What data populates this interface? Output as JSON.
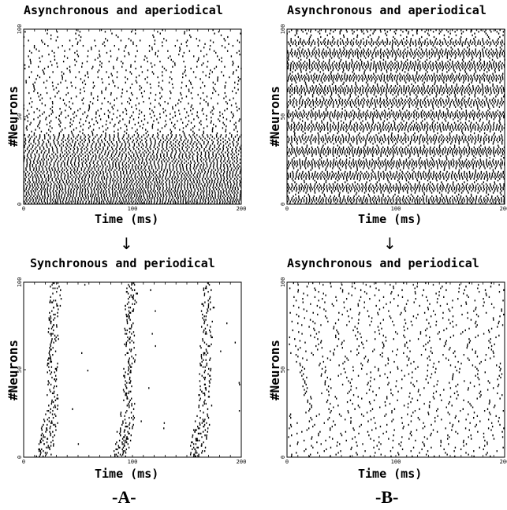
{
  "panels": {
    "A": {
      "label": "-A-"
    },
    "B": {
      "label": "-B-"
    }
  },
  "arrow_glyph": "↓",
  "chart_data": [
    {
      "type": "scatter",
      "panel": "A",
      "position": "top",
      "title": "Asynchronous and aperiodical",
      "xlabel": "Time (ms)",
      "ylabel": "#Neurons",
      "xlim": [
        0,
        200
      ],
      "ylim": [
        0,
        100
      ],
      "xticks": [
        0,
        100,
        200
      ],
      "yticks": [
        0,
        50,
        100
      ],
      "pattern": "asynchronous-aperiodical, dense low-index neurons, sparse high-index neurons",
      "rows": 100
    },
    {
      "type": "scatter",
      "panel": "B",
      "position": "top",
      "title": "Asynchronous and aperiodical",
      "xlabel": "Time (ms)",
      "ylabel": "#Neurons",
      "xlim": [
        0,
        200
      ],
      "ylim": [
        0,
        100
      ],
      "xticks": [
        0,
        100,
        200
      ],
      "yticks": [
        0,
        50,
        100
      ],
      "pattern": "asynchronous-aperiodical, dense firing across all neurons",
      "rows": 100
    },
    {
      "type": "scatter",
      "panel": "A",
      "position": "bottom",
      "title": "Synchronous and periodical",
      "xlabel": "Time (ms)",
      "ylabel": "#Neurons",
      "xlim": [
        0,
        200
      ],
      "ylim": [
        0,
        100
      ],
      "xticks": [
        0,
        100,
        200
      ],
      "yticks": [
        0,
        50,
        100
      ],
      "pattern": "synchronous bursts",
      "burst_centers_ms": [
        25,
        95,
        165
      ],
      "rows": 100
    },
    {
      "type": "scatter",
      "panel": "B",
      "position": "bottom",
      "title": "Asynchronous and periodical",
      "xlabel": "Time (ms)",
      "ylabel": "#Neurons",
      "xlim": [
        0,
        200
      ],
      "ylim": [
        0,
        100
      ],
      "xticks": [
        0,
        100,
        200
      ],
      "yticks": [
        0,
        50,
        100
      ],
      "pattern": "asynchronous-periodical, diagonal spike waves",
      "rows": 100
    }
  ]
}
